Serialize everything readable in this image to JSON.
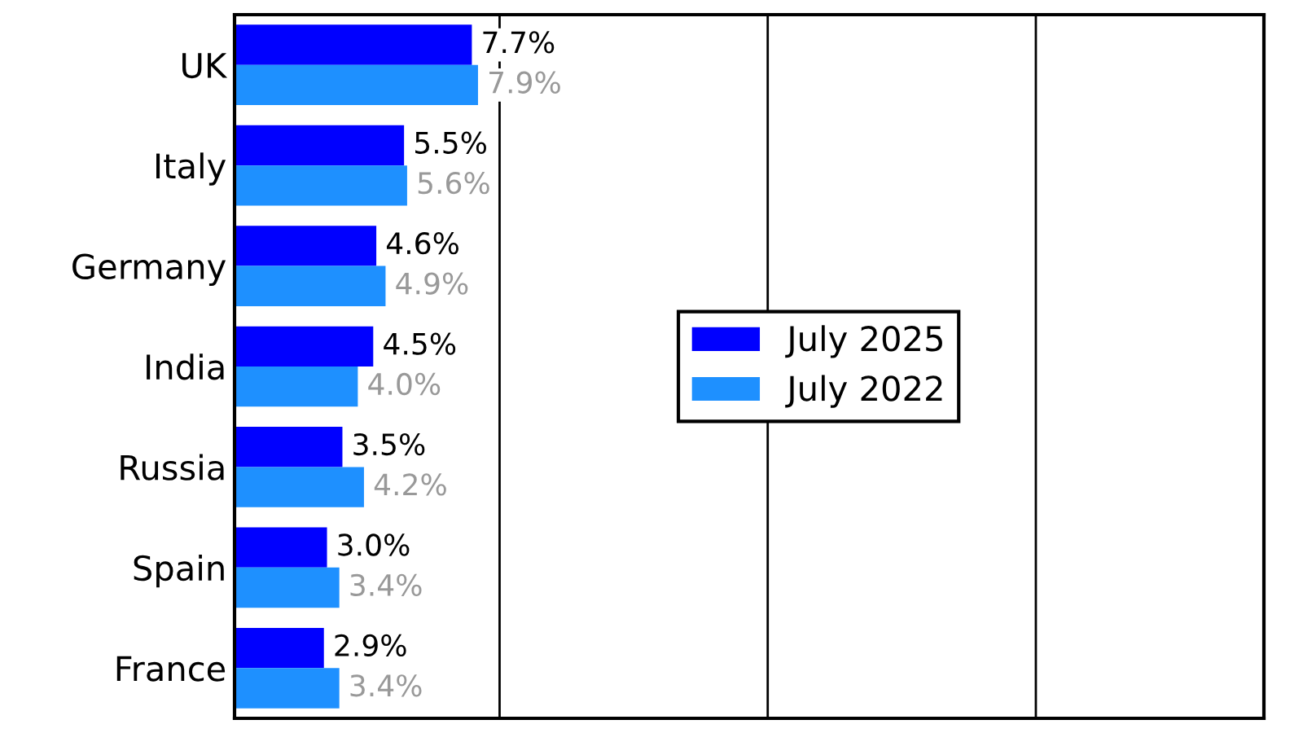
{
  "chart_data": {
    "type": "bar",
    "orientation": "horizontal",
    "categories": [
      "UK",
      "Italy",
      "Germany",
      "India",
      "Russia",
      "Spain",
      "France"
    ],
    "series": [
      {
        "name": "July 2025",
        "color": "#0000ff",
        "values": [
          7.7,
          5.5,
          4.6,
          4.5,
          3.5,
          3.0,
          2.9
        ],
        "value_labels": [
          "7.7%",
          "5.5%",
          "4.6%",
          "4.5%",
          "3.5%",
          "3.0%",
          "2.9%"
        ]
      },
      {
        "name": "July 2022",
        "color": "#1e90ff",
        "values": [
          7.9,
          5.6,
          4.9,
          4.0,
          4.2,
          3.4,
          3.4
        ],
        "value_labels": [
          "7.9%",
          "5.6%",
          "4.9%",
          "4.0%",
          "4.2%",
          "3.4%",
          "3.4%"
        ]
      }
    ],
    "xlim": [
      0,
      33.4
    ],
    "xticks": [
      {
        "value": 8.6,
        "label": null
      },
      {
        "value": 17.3,
        "label": null
      },
      {
        "value": 26.0,
        "label": null
      }
    ],
    "grid": "x",
    "legend": "right"
  }
}
